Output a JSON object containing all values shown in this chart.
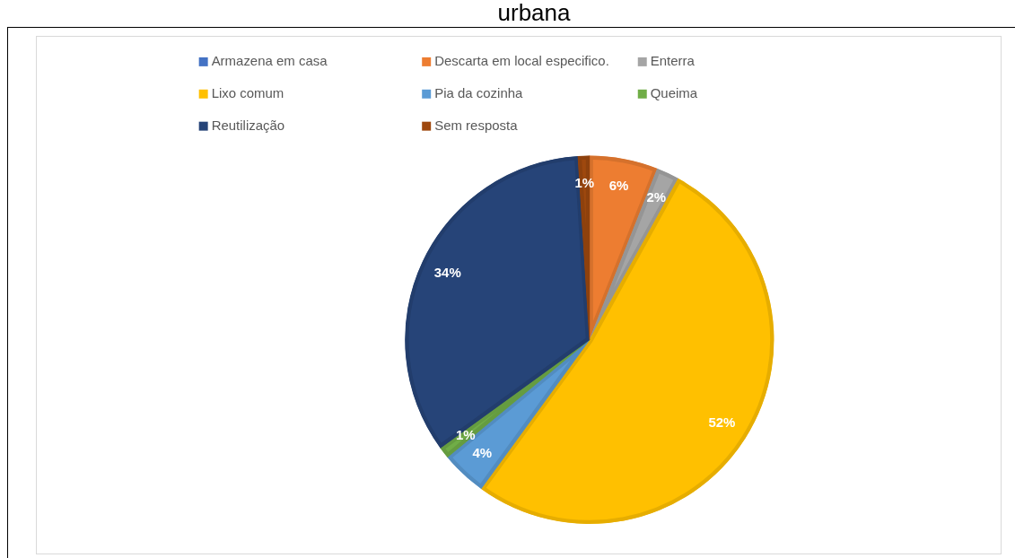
{
  "chart_data": {
    "type": "pie",
    "title": "urbana",
    "categories": [
      "Armazena em casa",
      "Descarta em local especifico.",
      "Enterra",
      "Lixo comum",
      "Pia da cozinha",
      "Queima",
      "Reutilização",
      "Sem resposta"
    ],
    "values": [
      0,
      6,
      2,
      52,
      4,
      1,
      34,
      1
    ],
    "value_labels": [
      null,
      "6%",
      "2%",
      "52%",
      "4%",
      "1%",
      "34%",
      "1%"
    ],
    "colors": [
      "#4472c4",
      "#ed7d31",
      "#a5a5a5",
      "#ffc000",
      "#5b9bd5",
      "#70ad47",
      "#264478",
      "#9e480e"
    ],
    "legend": "top"
  }
}
